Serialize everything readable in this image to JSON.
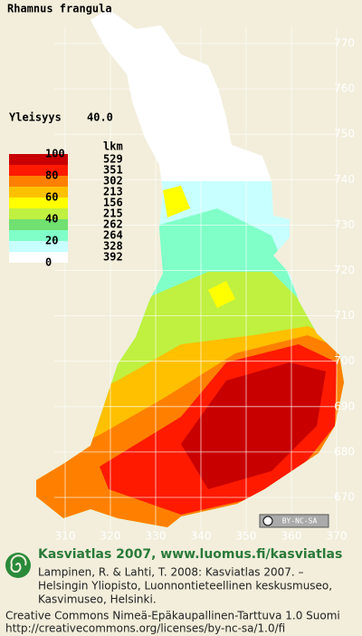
{
  "title": "Rhamnus frangula",
  "frequency": {
    "label": "Yleisyys",
    "value": "40.0"
  },
  "legend": {
    "scale_labels": [
      "100",
      "80",
      "60",
      "40",
      "20",
      "0"
    ],
    "count_header": "lkm",
    "counts": [
      "529",
      "351",
      "302",
      "213",
      "156",
      "215",
      "262",
      "264",
      "328",
      "392"
    ],
    "colors": [
      "#c80000",
      "#ff1a00",
      "#ff8000",
      "#ffc000",
      "#ffff00",
      "#c0f040",
      "#70e070",
      "#80ffc8",
      "#c8ffff",
      "#ffffff"
    ]
  },
  "grid": {
    "x_labels": [
      "310",
      "320",
      "330",
      "340",
      "350",
      "360",
      "370"
    ],
    "y_labels": [
      "770",
      "760",
      "750",
      "740",
      "730",
      "720",
      "710",
      "700",
      "690",
      "680",
      "670"
    ]
  },
  "license_badge": "BY-NC-SA",
  "footer": {
    "heading": "Kasviatlas 2007, www.luomus.fi/kasviatlas",
    "citation": [
      "Lampinen, R. & Lahti, T. 2008: Kasviatlas 2007. –",
      "Helsingin Yliopisto, Luonnontieteellinen keskusmuseo,",
      "Kasvimuseo, Helsinki."
    ],
    "license": [
      "Creative Commons Nimeä-Epäkaupallinen-Tarttuva 1.0 Suomi",
      "http://creativecommons.org/licenses/by-nc-sa/1.0/fi"
    ]
  }
}
